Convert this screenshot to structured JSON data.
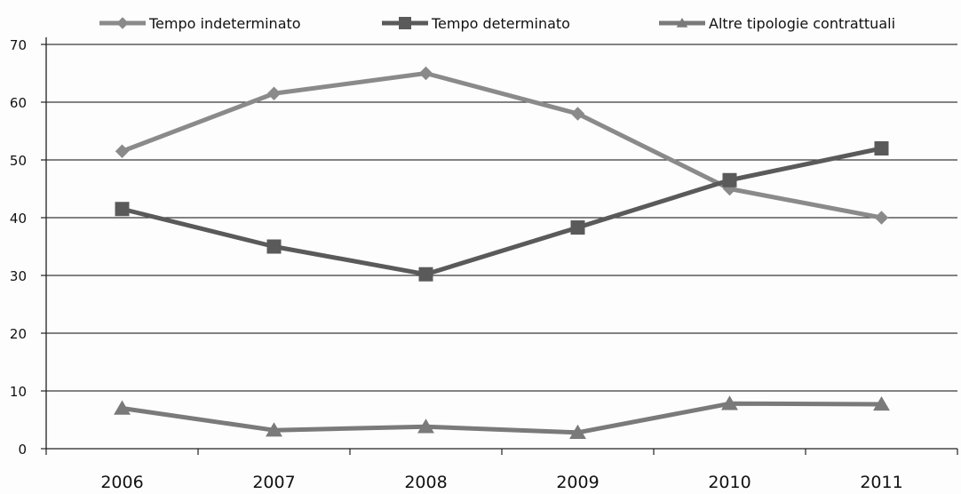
{
  "chart_data": {
    "type": "line",
    "title": "",
    "xlabel": "",
    "ylabel": "",
    "categories": [
      "2006",
      "2007",
      "2008",
      "2009",
      "2010",
      "2011"
    ],
    "ylim": [
      0,
      70
    ],
    "yticks": [
      "0",
      "10",
      "20",
      "30",
      "40",
      "50",
      "60",
      "70"
    ],
    "grid": true,
    "legend_position": "top",
    "series": [
      {
        "name": "Tempo indeterminato",
        "marker": "diamond",
        "color": "#8a8a8a",
        "values": [
          51.5,
          61.5,
          65.0,
          58.0,
          45.0,
          40.0
        ]
      },
      {
        "name": "Tempo determinato",
        "marker": "square",
        "color": "#5a5a5a",
        "values": [
          41.5,
          35.0,
          30.2,
          38.3,
          46.5,
          52.0
        ]
      },
      {
        "name": "Altre tipologie contrattuali",
        "marker": "triangle",
        "color": "#7a7a7a",
        "values": [
          7.0,
          3.2,
          3.8,
          2.8,
          7.8,
          7.7
        ]
      }
    ]
  }
}
